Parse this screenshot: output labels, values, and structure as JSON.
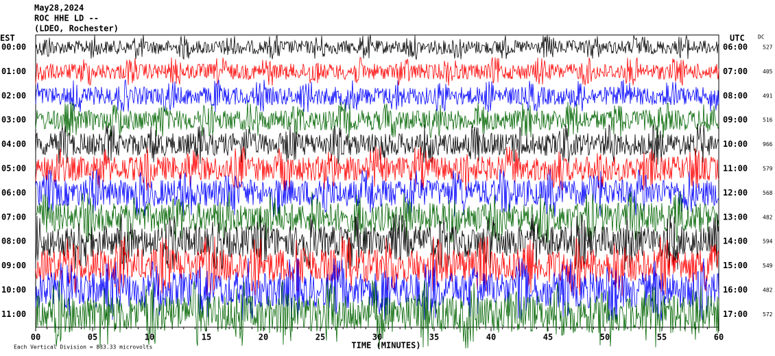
{
  "header": {
    "date": "May28,2024",
    "station": "ROC HHE LD --",
    "source": "(LDEO, Rochester)"
  },
  "left_axis": {
    "title": "EST",
    "labels": [
      "00:00",
      "01:00",
      "02:00",
      "03:00",
      "04:00",
      "05:00",
      "06:00",
      "07:00",
      "08:00",
      "09:00",
      "10:00",
      "11:00"
    ]
  },
  "right_axis": {
    "title": "UTC",
    "labels": [
      "06:00",
      "07:00",
      "08:00",
      "09:00",
      "10:00",
      "11:00",
      "12:00",
      "13:00",
      "14:00",
      "15:00",
      "16:00",
      "17:00"
    ]
  },
  "dc": {
    "title": "DC",
    "values": [
      "527",
      "405",
      "491",
      "516",
      "966",
      "579",
      "568",
      "482",
      "594",
      "549",
      "482",
      "572"
    ]
  },
  "x_axis": {
    "title": "TIME (MINUTES)",
    "labels": [
      "00",
      "05",
      "10",
      "15",
      "20",
      "25",
      "30",
      "35",
      "40",
      "45",
      "50",
      "55",
      "60"
    ]
  },
  "footer": "Each Vertical Division = 833.33 microvolts",
  "trace_colors": [
    "#000000",
    "#ff0000",
    "#0000ff",
    "#006400"
  ]
}
